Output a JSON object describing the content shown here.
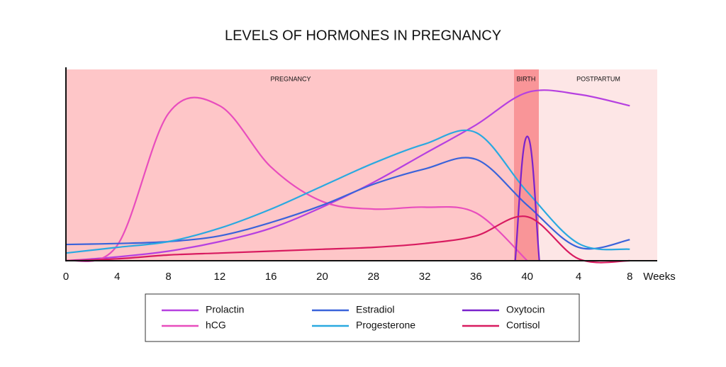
{
  "chart_data": {
    "type": "line",
    "title": "LEVELS OF HORMONES IN PREGNANCY",
    "x_label": "Weeks",
    "regions": [
      "PREGNANCY",
      "BIRTH",
      "POSTPARTUM"
    ],
    "categories": [
      "0",
      "4",
      "8",
      "12",
      "16",
      "20",
      "28",
      "32",
      "36",
      "40",
      "4",
      "8"
    ],
    "ylim": [
      0,
      100
    ],
    "series": [
      {
        "name": "Prolactin",
        "color": "#b640e0",
        "values": [
          0,
          2,
          5,
          10,
          17,
          28,
          41,
          56,
          71,
          88,
          87,
          81
        ]
      },
      {
        "name": "hCG",
        "color": "#e84dbd",
        "values": [
          0,
          8,
          77,
          81,
          49,
          31,
          27,
          28,
          25,
          0,
          null,
          null
        ]
      },
      {
        "name": "Estradiol",
        "color": "#3a63da",
        "values": [
          8.5,
          9,
          10,
          13,
          20,
          29,
          40,
          48,
          53,
          29,
          7,
          11
        ]
      },
      {
        "name": "Progesterone",
        "color": "#2aa9e0",
        "values": [
          4,
          7,
          10,
          17,
          27,
          39,
          51,
          61,
          67,
          36,
          9,
          6
        ]
      },
      {
        "name": "Oxytocin",
        "color": "#7a22cc",
        "values": [
          null,
          null,
          null,
          null,
          null,
          null,
          null,
          null,
          null,
          65,
          null,
          null
        ]
      },
      {
        "name": "Cortisol",
        "color": "#d81b60",
        "values": [
          0,
          1,
          3,
          4,
          5,
          6,
          7,
          9,
          13,
          23,
          1,
          0
        ]
      }
    ]
  }
}
